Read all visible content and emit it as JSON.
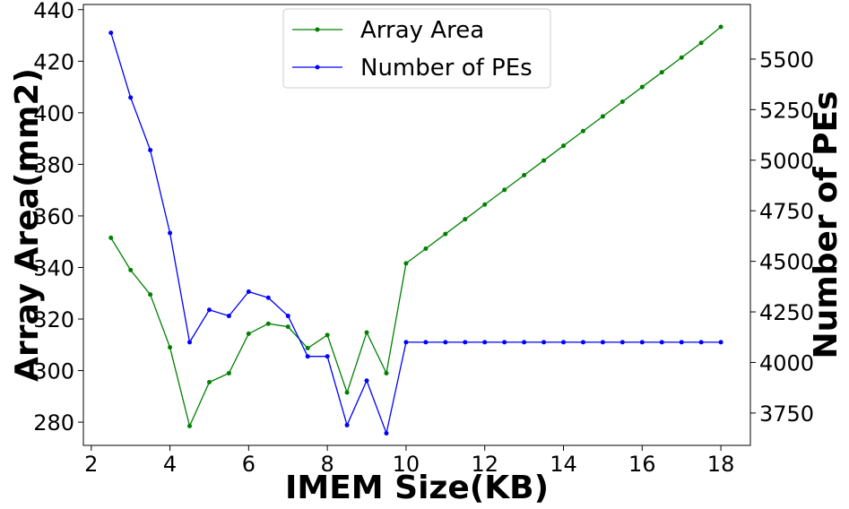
{
  "chart_data": {
    "type": "line",
    "xlabel": "IMEM Size(KB)",
    "ylabel_left": "Array Area(mm2)",
    "ylabel_right": "Number of PEs",
    "xlim": [
      1.8,
      18.75
    ],
    "ylim_left": [
      271,
      442
    ],
    "ylim_right": [
      3590,
      5770
    ],
    "xticks": [
      2,
      4,
      6,
      8,
      10,
      12,
      14,
      16,
      18
    ],
    "yticks_left": [
      280,
      300,
      320,
      340,
      360,
      380,
      400,
      420,
      440
    ],
    "yticks_right": [
      3750,
      4000,
      4250,
      4500,
      4750,
      5000,
      5250,
      5500
    ],
    "grid": false,
    "legend_position": "top-center",
    "x": [
      2.5,
      3,
      3.5,
      4,
      4.5,
      5,
      5.5,
      6,
      6.5,
      7,
      7.5,
      8,
      8.5,
      9,
      9.5,
      10,
      10.5,
      11,
      11.5,
      12,
      12.5,
      13,
      13.5,
      14,
      14.5,
      15,
      15.5,
      16,
      16.5,
      17,
      17.5,
      18
    ],
    "series": [
      {
        "name": "Array Area",
        "axis": "left",
        "color": "#008000",
        "values": [
          351.5,
          339,
          329.5,
          309,
          278.5,
          295.5,
          299,
          314.3,
          318.2,
          317,
          308.7,
          313.8,
          291.5,
          314.8,
          299,
          341.6,
          347.3,
          353,
          358.7,
          364.4,
          370.1,
          375.8,
          381.5,
          387.2,
          392.9,
          398.6,
          404.3,
          410,
          415.7,
          421.4,
          427.1,
          433.3
        ]
      },
      {
        "name": "Number of PEs",
        "axis": "right",
        "color": "#0000ff",
        "values": [
          5630,
          5310,
          5050,
          4640,
          4100,
          4260,
          4230,
          4350,
          4320,
          4230,
          4030,
          4030,
          3690,
          3910,
          3650,
          4100,
          4100,
          4100,
          4100,
          4100,
          4100,
          4100,
          4100,
          4100,
          4100,
          4100,
          4100,
          4100,
          4100,
          4100,
          4100,
          4100
        ]
      }
    ]
  }
}
